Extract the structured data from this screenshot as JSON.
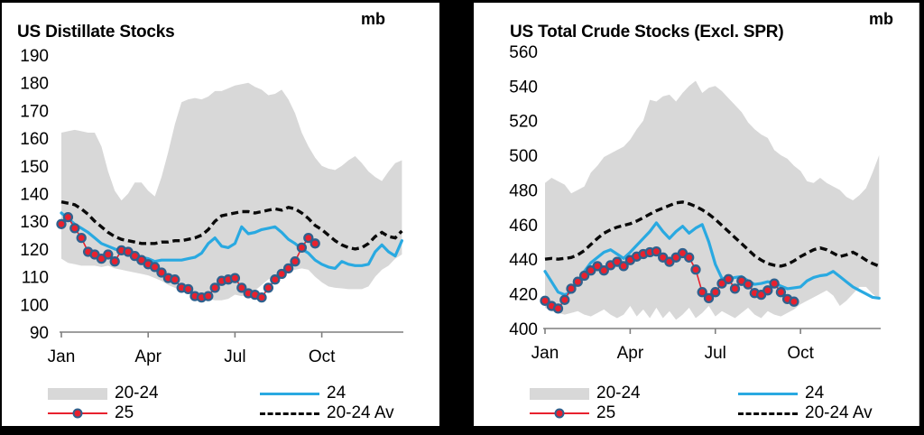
{
  "colors": {
    "band": "#d8d8d8",
    "line_24": "#29a9e1",
    "line_25": "#e8212e",
    "marker_ring": "#2f618e",
    "avg": "#0a0a0a",
    "axis": "#7f7f7f",
    "text": "#000000",
    "panel_bg": "#ffffff",
    "page_bg": "#000000"
  },
  "panels": [
    {
      "title": "US Distillate Stocks",
      "unit": "mb",
      "legend": {
        "range": "20-24",
        "current": "25",
        "previous": "24",
        "average": "20-24 Av"
      }
    },
    {
      "title": "US Total Crude Stocks (Excl. SPR)",
      "unit": "mb",
      "legend": {
        "range": "20-24",
        "current": "25",
        "previous": "24",
        "average": "20-24 Av"
      }
    }
  ],
  "chart_data": [
    {
      "type": "line",
      "title": "US Distillate Stocks",
      "unit": "mb",
      "x_frequency": "weekly",
      "x_tick_labels": [
        "Jan",
        "Apr",
        "Jul",
        "Oct"
      ],
      "x_tick_weeks": [
        1,
        14,
        27,
        40
      ],
      "ylim": [
        90,
        190
      ],
      "y_ticks": [
        190,
        180,
        170,
        160,
        150,
        140,
        130,
        120,
        110,
        100,
        90
      ],
      "grid": false,
      "legend_position": "bottom",
      "series": [
        {
          "name": "20-24",
          "type": "band",
          "color": "#d8d8d8",
          "upper": [
            162,
            162.5,
            163,
            162.5,
            162,
            162,
            157,
            148,
            141,
            137.5,
            140,
            144,
            144,
            141,
            139,
            146,
            155,
            165,
            173,
            174,
            174.5,
            174,
            175,
            177,
            177,
            178,
            179,
            179.5,
            180,
            178.5,
            177.5,
            175.5,
            176,
            177.5,
            174,
            169,
            162,
            157,
            153,
            150,
            149,
            148.5,
            150,
            152,
            153.5,
            151,
            148,
            146,
            144.5,
            148,
            151,
            152
          ],
          "lower": [
            116.5,
            115,
            114.5,
            114,
            114,
            114,
            113.5,
            114,
            113,
            112.5,
            112,
            111.5,
            111,
            110.5,
            109.5,
            108.5,
            107,
            106,
            105,
            104.5,
            103.5,
            103,
            102,
            101.5,
            101.5,
            102,
            103.5,
            103,
            103.5,
            105,
            107,
            109,
            110.5,
            111.5,
            112,
            112.5,
            113,
            112.5,
            110,
            108,
            106.5,
            106,
            105.8,
            105.5,
            105.5,
            105.5,
            106.5,
            110,
            112.5,
            114,
            116.5,
            118
          ]
        },
        {
          "name": "20-24 Av",
          "type": "dashed",
          "color": "#0a0a0a",
          "values": [
            137,
            136.5,
            136,
            134.5,
            132.5,
            130,
            128,
            126,
            124.5,
            123.5,
            123,
            122.5,
            122,
            122,
            122,
            122.5,
            122.5,
            123,
            123,
            123.5,
            124,
            125,
            127,
            130,
            132,
            132.5,
            133,
            133.5,
            133.5,
            133,
            133.5,
            134,
            134.5,
            134,
            135,
            134.5,
            133,
            131,
            128.5,
            127,
            125,
            123,
            121.5,
            120.5,
            120,
            120.5,
            122,
            124.5,
            126,
            124.5,
            124,
            126.5
          ]
        },
        {
          "name": "24",
          "type": "line",
          "color": "#29a9e1",
          "values": [
            133,
            131,
            129,
            127.5,
            126,
            124,
            122,
            121,
            120,
            119,
            118.5,
            118,
            117,
            116.5,
            115.5,
            116,
            116,
            116,
            116,
            116.5,
            117,
            118.5,
            122,
            124,
            121,
            120.5,
            122,
            128,
            125.5,
            126,
            127,
            127.5,
            128,
            126,
            123.5,
            122,
            120,
            118.5,
            116,
            114.5,
            113.5,
            113,
            115.5,
            114.5,
            114,
            114,
            114.5,
            119,
            121.5,
            119,
            117.5,
            123
          ]
        },
        {
          "name": "25",
          "type": "line-markers",
          "color": "#e8212e",
          "marker_stroke": "#2f618e",
          "values": [
            129,
            131.5,
            127.5,
            124,
            119,
            118,
            116.5,
            118,
            115.5,
            119.5,
            119,
            117.5,
            116,
            114.5,
            113.5,
            111.5,
            109.5,
            109,
            106,
            105.5,
            103,
            102.5,
            103,
            106,
            108.5,
            109,
            109.5,
            106,
            104,
            103.5,
            102.5,
            106,
            109,
            111,
            113,
            115.5,
            120.5,
            124,
            122
          ]
        }
      ]
    },
    {
      "type": "line",
      "title": "US Total Crude Stocks (Excl. SPR)",
      "unit": "mb",
      "x_frequency": "weekly",
      "x_tick_labels": [
        "Jan",
        "Apr",
        "Jul",
        "Oct"
      ],
      "x_tick_weeks": [
        1,
        14,
        27,
        40
      ],
      "ylim": [
        400,
        560
      ],
      "y_ticks": [
        560,
        540,
        520,
        500,
        480,
        460,
        440,
        420,
        400
      ],
      "grid": false,
      "legend_position": "bottom",
      "series": [
        {
          "name": "20-24",
          "type": "band",
          "color": "#d8d8d8",
          "upper": [
            484,
            487,
            485,
            483,
            478,
            480,
            482,
            490,
            494,
            499,
            501,
            503,
            505,
            509,
            515,
            520,
            532,
            531,
            534,
            535,
            531,
            536,
            540,
            543,
            536,
            539,
            540,
            537,
            533,
            529,
            525,
            519,
            515,
            512,
            510,
            503,
            500,
            498,
            494,
            491,
            485,
            484,
            487,
            484,
            482,
            480,
            476,
            474,
            477,
            481,
            490,
            500
          ],
          "lower": [
            412,
            410,
            409,
            408,
            409,
            410,
            408,
            407,
            409,
            411,
            408,
            406,
            408,
            413,
            407,
            411,
            406,
            412,
            406,
            410,
            405,
            408,
            412,
            406,
            409,
            413,
            407,
            410,
            408,
            406,
            409,
            412,
            408,
            406,
            410,
            408,
            407,
            409,
            411,
            414,
            416,
            418,
            420,
            422,
            419,
            413,
            416,
            420,
            424,
            424,
            420,
            417
          ]
        },
        {
          "name": "20-24 Av",
          "type": "dashed",
          "color": "#0a0a0a",
          "values": [
            440,
            440.5,
            440,
            440.5,
            441,
            442.5,
            445,
            448.5,
            452,
            455,
            457,
            458.5,
            459.5,
            460.5,
            462,
            464,
            466,
            468,
            469.5,
            471,
            472.5,
            473,
            472,
            470.5,
            468.5,
            466,
            463,
            459.5,
            456,
            452.5,
            449,
            445.5,
            442,
            439.5,
            437.5,
            436.5,
            436,
            437,
            439,
            441.5,
            443.5,
            445.5,
            446.5,
            445.5,
            443.5,
            441.5,
            442.5,
            444,
            442,
            439.5,
            437.5,
            436
          ]
        },
        {
          "name": "24",
          "type": "line",
          "color": "#29a9e1",
          "values": [
            433,
            427,
            421,
            419.5,
            421,
            427,
            433,
            438,
            441,
            444,
            445.5,
            443,
            440.5,
            444,
            448,
            452,
            456,
            461,
            456,
            452,
            456,
            459,
            455,
            458,
            460,
            450,
            437,
            429,
            428.5,
            429.5,
            430,
            427.5,
            425.5,
            426,
            427,
            426.5,
            424.5,
            423,
            423.5,
            424,
            427.5,
            429.5,
            430.5,
            431,
            433,
            430,
            427,
            424,
            422,
            420,
            418,
            417.5
          ]
        },
        {
          "name": "25",
          "type": "line-markers",
          "color": "#e8212e",
          "marker_stroke": "#2f618e",
          "values": [
            416,
            413,
            411.5,
            416.5,
            423,
            427,
            430.5,
            433.5,
            436,
            433.5,
            436.5,
            438.5,
            436,
            439.5,
            441.5,
            443,
            444,
            444.5,
            441,
            438.5,
            441,
            443.5,
            441,
            434,
            421,
            417.5,
            421,
            426,
            428.5,
            423,
            427.5,
            425.5,
            420.5,
            419.5,
            422,
            426,
            421,
            417,
            415.5
          ]
        }
      ]
    }
  ]
}
